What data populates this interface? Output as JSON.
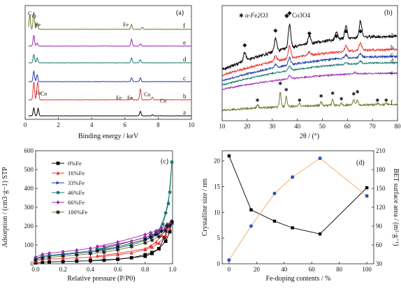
{
  "chart_data": [
    {
      "type": "line",
      "panel": "(a)",
      "xlabel": "Binding energy / keV",
      "xlim": [
        0,
        10
      ],
      "xticks": [
        0,
        2,
        4,
        6,
        8,
        10
      ],
      "series": [
        {
          "name": "a",
          "color": "#000000",
          "peaks": [
            {
              "x": 0.52,
              "h": 0.95
            },
            {
              "x": 0.78,
              "h": 0.9
            },
            {
              "x": 6.93,
              "h": 0.55
            },
            {
              "x": 7.65,
              "h": 0.12
            }
          ],
          "noise": 0.06
        },
        {
          "name": "b",
          "color": "#e53935",
          "peaks": [
            {
              "x": 0.52,
              "h": 1.0
            },
            {
              "x": 0.72,
              "h": 0.55
            },
            {
              "x": 0.78,
              "h": 0.7
            },
            {
              "x": 6.4,
              "h": 0.12
            },
            {
              "x": 6.93,
              "h": 0.6
            },
            {
              "x": 7.65,
              "h": 0.15
            }
          ],
          "noise": 0.06
        },
        {
          "name": "c",
          "color": "#1e3fa8",
          "peaks": [
            {
              "x": 0.52,
              "h": 0.7
            },
            {
              "x": 0.72,
              "h": 0.45
            },
            {
              "x": 6.4,
              "h": 0.25
            },
            {
              "x": 6.93,
              "h": 0.25
            }
          ],
          "noise": 0.05
        },
        {
          "name": "d",
          "color": "#1b7a6e",
          "peaks": [
            {
              "x": 0.52,
              "h": 0.6
            },
            {
              "x": 0.72,
              "h": 0.35
            },
            {
              "x": 6.4,
              "h": 0.35
            },
            {
              "x": 6.93,
              "h": 0.22
            }
          ],
          "noise": 0.05
        },
        {
          "name": "e",
          "color": "#9c27b0",
          "peaks": [
            {
              "x": 0.52,
              "h": 0.7
            },
            {
              "x": 0.72,
              "h": 0.2
            },
            {
              "x": 6.4,
              "h": 0.45
            },
            {
              "x": 6.93,
              "h": 0.15
            }
          ],
          "noise": 0.05
        },
        {
          "name": "f",
          "color": "#6d7a2c",
          "peaks": [
            {
              "x": 0.28,
              "h": 0.75
            },
            {
              "x": 0.52,
              "h": 0.9
            },
            {
              "x": 0.72,
              "h": 0.3
            },
            {
              "x": 6.4,
              "h": 0.25
            },
            {
              "x": 7.05,
              "h": 0.1
            }
          ],
          "noise": 0.04
        }
      ],
      "annotations": [
        "C",
        "O",
        "Fe",
        "Fe",
        "Co",
        "Fe",
        "Fe",
        "Fe",
        "Co",
        "Co"
      ],
      "curve_labels": [
        "a",
        "b",
        "c",
        "d",
        "e",
        "f"
      ]
    },
    {
      "type": "line",
      "panel": "(b)",
      "xlabel": "2θ / (°)",
      "xlim": [
        10,
        80
      ],
      "xticks": [
        10,
        20,
        30,
        40,
        50,
        60,
        70,
        80
      ],
      "legend": [
        {
          "symbol": "✱",
          "label": "α-Fe2O3",
          "color": "#6d7a2c"
        },
        {
          "symbol": "◆",
          "label": "Co3O4",
          "color": "#000000"
        }
      ],
      "series": [
        {
          "name": "a",
          "color": "#000000",
          "start": 0.0,
          "end": 0.86,
          "peaks": [
            [
              19,
              0.35
            ],
            [
              31.3,
              0.55
            ],
            [
              36.9,
              1.0
            ],
            [
              44.8,
              0.35
            ],
            [
              55.6,
              0.35
            ],
            [
              59.4,
              0.55
            ],
            [
              65.2,
              0.7
            ]
          ]
        },
        {
          "name": "b",
          "color": "#e53935",
          "start": 0.0,
          "end": 0.76,
          "peaks": [
            [
              31.3,
              0.3
            ],
            [
              36.9,
              0.7
            ],
            [
              44.8,
              0.2
            ],
            [
              59.4,
              0.3
            ],
            [
              65.2,
              0.4
            ]
          ]
        },
        {
          "name": "c",
          "color": "#1e3fa8",
          "start": 0.0,
          "end": 0.7,
          "peaks": [
            [
              31.3,
              0.2
            ],
            [
              36.9,
              0.45
            ],
            [
              59.4,
              0.2
            ],
            [
              65.2,
              0.25
            ]
          ]
        },
        {
          "name": "d",
          "color": "#1b7a6e",
          "start": 0.0,
          "end": 0.62,
          "peaks": [
            [
              36.9,
              0.35
            ],
            [
              59.4,
              0.15
            ],
            [
              65.2,
              0.2
            ]
          ]
        },
        {
          "name": "e",
          "color": "#9c27b0",
          "start": 0.0,
          "end": 0.55,
          "peaks": [
            [
              36.9,
              0.3
            ],
            [
              63.0,
              0.15
            ]
          ]
        },
        {
          "name": "f",
          "color": "#6d7a2c",
          "start": 0.0,
          "end": 0.2,
          "peaks": [
            [
              24.1,
              0.25
            ],
            [
              33.2,
              1.0
            ],
            [
              35.6,
              0.7
            ],
            [
              40.9,
              0.2
            ],
            [
              49.5,
              0.3
            ],
            [
              54.1,
              0.35
            ],
            [
              57.6,
              0.15
            ],
            [
              62.5,
              0.35
            ],
            [
              64.0,
              0.35
            ],
            [
              72.0,
              0.1
            ],
            [
              75.5,
              0.1
            ]
          ]
        }
      ],
      "marker_peaks_co3o4": [
        19,
        31.3,
        36.9,
        44.8,
        55.6,
        59.4,
        65.2
      ],
      "marker_peaks_fe2o3": [
        24.1,
        33.2,
        35.6,
        40.9,
        49.5,
        54.1,
        57.6,
        62.5,
        64.0,
        72.0,
        75.5
      ],
      "curve_labels": [
        "a",
        "b",
        "c",
        "d",
        "e",
        "f"
      ]
    },
    {
      "type": "line",
      "panel": "(c)",
      "xlabel": "Relative pressure (P/P0)",
      "ylabel": "Adsorption / (cm3·g−1) STP",
      "xlim": [
        0,
        1.0
      ],
      "ylim": [
        0,
        600
      ],
      "xticks": [
        0.0,
        0.2,
        0.4,
        0.6,
        0.8,
        1.0
      ],
      "yticks": [
        0,
        100,
        200,
        300,
        400,
        500,
        600
      ],
      "series": [
        {
          "name": "0%Fe",
          "color": "#000000",
          "marker": "square",
          "ads": [
            [
              0.0,
              5
            ],
            [
              0.05,
              8
            ],
            [
              0.1,
              10
            ],
            [
              0.2,
              12
            ],
            [
              0.3,
              14
            ],
            [
              0.4,
              16
            ],
            [
              0.5,
              19
            ],
            [
              0.6,
              24
            ],
            [
              0.7,
              32
            ],
            [
              0.8,
              48
            ],
            [
              0.85,
              60
            ],
            [
              0.9,
              80
            ],
            [
              0.95,
              120
            ],
            [
              0.98,
              170
            ],
            [
              0.995,
              220
            ]
          ],
          "des": [
            [
              0.995,
              220
            ],
            [
              0.97,
              200
            ],
            [
              0.94,
              140
            ],
            [
              0.9,
              80
            ],
            [
              0.85,
              55
            ],
            [
              0.8,
              40
            ],
            [
              0.6,
              25
            ],
            [
              0.4,
              17
            ]
          ]
        },
        {
          "name": "16%Fe",
          "color": "#e53935",
          "marker": "triangle-up",
          "ads": [
            [
              0.0,
              15
            ],
            [
              0.05,
              22
            ],
            [
              0.1,
              25
            ],
            [
              0.2,
              28
            ],
            [
              0.3,
              32
            ],
            [
              0.4,
              35
            ],
            [
              0.5,
              40
            ],
            [
              0.6,
              48
            ],
            [
              0.7,
              58
            ],
            [
              0.8,
              75
            ],
            [
              0.85,
              88
            ],
            [
              0.9,
              110
            ],
            [
              0.95,
              150
            ],
            [
              0.98,
              190
            ],
            [
              0.995,
              225
            ]
          ],
          "des": [
            [
              0.995,
              225
            ],
            [
              0.96,
              195
            ],
            [
              0.92,
              150
            ],
            [
              0.88,
              115
            ],
            [
              0.84,
              95
            ],
            [
              0.8,
              80
            ],
            [
              0.6,
              55
            ],
            [
              0.45,
              42
            ]
          ]
        },
        {
          "name": "33%Fe",
          "color": "#1e3fa8",
          "marker": "triangle-right",
          "ads": [
            [
              0.0,
              25
            ],
            [
              0.05,
              38
            ],
            [
              0.1,
              42
            ],
            [
              0.2,
              48
            ],
            [
              0.3,
              55
            ],
            [
              0.4,
              62
            ],
            [
              0.5,
              72
            ],
            [
              0.6,
              84
            ],
            [
              0.7,
              100
            ],
            [
              0.8,
              125
            ],
            [
              0.85,
              140
            ],
            [
              0.9,
              160
            ],
            [
              0.95,
              185
            ],
            [
              0.98,
              200
            ],
            [
              0.995,
              210
            ]
          ],
          "des": [
            [
              0.995,
              210
            ],
            [
              0.96,
              195
            ],
            [
              0.92,
              175
            ],
            [
              0.88,
              160
            ],
            [
              0.84,
              150
            ],
            [
              0.8,
              140
            ],
            [
              0.6,
              100
            ],
            [
              0.45,
              75
            ]
          ]
        },
        {
          "name": "46%Fe",
          "color": "#1b7a6e",
          "marker": "circle",
          "ads": [
            [
              0.0,
              28
            ],
            [
              0.05,
              40
            ],
            [
              0.1,
              45
            ],
            [
              0.2,
              52
            ],
            [
              0.3,
              60
            ],
            [
              0.4,
              68
            ],
            [
              0.5,
              78
            ],
            [
              0.6,
              90
            ],
            [
              0.7,
              108
            ],
            [
              0.8,
              130
            ],
            [
              0.85,
              145
            ],
            [
              0.9,
              175
            ],
            [
              0.95,
              270
            ],
            [
              0.98,
              380
            ],
            [
              0.995,
              540
            ]
          ],
          "des": [
            [
              0.995,
              540
            ],
            [
              0.97,
              320
            ],
            [
              0.93,
              210
            ],
            [
              0.88,
              165
            ],
            [
              0.84,
              150
            ],
            [
              0.8,
              140
            ],
            [
              0.6,
              100
            ],
            [
              0.45,
              78
            ]
          ]
        },
        {
          "name": "66%Fe",
          "color": "#9c27b0",
          "marker": "diamond",
          "ads": [
            [
              0.0,
              35
            ],
            [
              0.05,
              50
            ],
            [
              0.1,
              56
            ],
            [
              0.2,
              64
            ],
            [
              0.3,
              72
            ],
            [
              0.4,
              82
            ],
            [
              0.5,
              92
            ],
            [
              0.6,
              105
            ],
            [
              0.7,
              120
            ],
            [
              0.8,
              140
            ],
            [
              0.85,
              152
            ],
            [
              0.9,
              168
            ],
            [
              0.95,
              190
            ],
            [
              0.98,
              210
            ],
            [
              0.995,
              225
            ]
          ],
          "des": [
            [
              0.995,
              225
            ],
            [
              0.96,
              210
            ],
            [
              0.92,
              190
            ],
            [
              0.88,
              175
            ],
            [
              0.84,
              165
            ],
            [
              0.8,
              155
            ],
            [
              0.6,
              115
            ],
            [
              0.45,
              92
            ]
          ]
        },
        {
          "name": "100%Fe",
          "color": "#6d7a2c",
          "marker": "star",
          "ads": [
            [
              0.0,
              20
            ],
            [
              0.05,
              30
            ],
            [
              0.1,
              34
            ],
            [
              0.2,
              40
            ],
            [
              0.3,
              46
            ],
            [
              0.4,
              53
            ],
            [
              0.5,
              62
            ],
            [
              0.6,
              74
            ],
            [
              0.7,
              90
            ],
            [
              0.8,
              112
            ],
            [
              0.85,
              126
            ],
            [
              0.9,
              145
            ],
            [
              0.95,
              175
            ],
            [
              0.98,
              205
            ],
            [
              0.995,
              225
            ]
          ],
          "des": [
            [
              0.995,
              225
            ],
            [
              0.96,
              200
            ],
            [
              0.92,
              175
            ],
            [
              0.88,
              155
            ],
            [
              0.84,
              142
            ],
            [
              0.8,
              130
            ],
            [
              0.6,
              90
            ],
            [
              0.45,
              68
            ]
          ]
        }
      ]
    },
    {
      "type": "line",
      "panel": "(d)",
      "xlabel": "Fe-doping contents / %",
      "ylabel": "Crystalline size / nm",
      "y2label": "BET surface area / (m²·g⁻¹)",
      "xlim": [
        -5,
        105
      ],
      "ylim": [
        0,
        22
      ],
      "y2lim": [
        30,
        210
      ],
      "xticks": [
        0,
        20,
        40,
        60,
        80,
        100
      ],
      "yticks": [
        0,
        5,
        10,
        15,
        20
      ],
      "y2ticks": [
        30,
        60,
        90,
        120,
        150,
        180,
        210
      ],
      "series": [
        {
          "name": "Crystalline size",
          "axis": "left",
          "color": "#000000",
          "marker": "square",
          "x": [
            0,
            16,
            33,
            46,
            66,
            100
          ],
          "y": [
            21.0,
            10.5,
            8.3,
            7.0,
            5.8,
            14.8
          ]
        },
        {
          "name": "BET surface area",
          "axis": "right",
          "color": "#f4a460",
          "marker_color": "#1e56c8",
          "marker": "circle",
          "x": [
            0,
            16,
            33,
            46,
            66,
            100
          ],
          "y": [
            36,
            90,
            142,
            168,
            198,
            138
          ]
        }
      ]
    }
  ]
}
